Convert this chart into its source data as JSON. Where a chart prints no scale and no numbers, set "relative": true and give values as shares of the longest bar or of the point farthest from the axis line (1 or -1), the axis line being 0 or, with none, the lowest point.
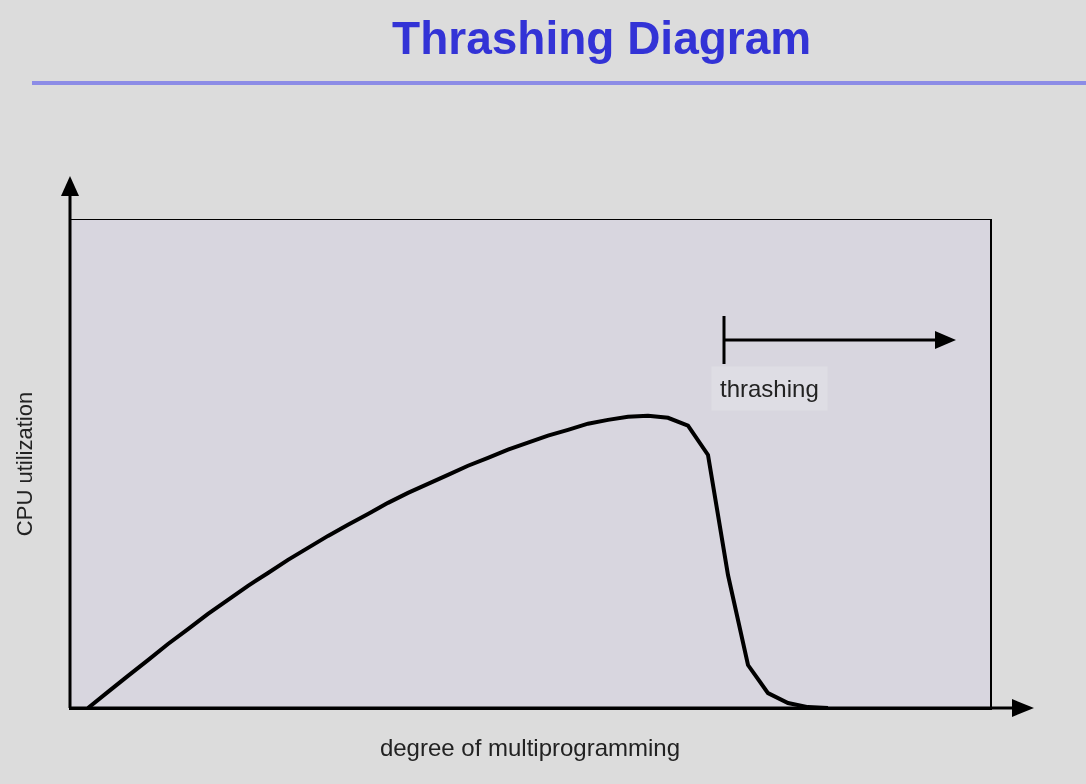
{
  "chart_data": {
    "type": "line",
    "title": "Thrashing Diagram",
    "xlabel": "degree of multiprogramming",
    "ylabel": "CPU utilization",
    "annotations": [
      "thrashing"
    ],
    "relative": true,
    "grid": false,
    "marker": "none",
    "line_style": "solid",
    "categories": [
      null,
      null,
      null,
      null,
      null,
      null,
      null,
      null,
      null,
      null,
      null,
      null,
      null,
      null,
      null,
      null,
      null,
      null,
      null,
      null,
      null,
      null,
      null,
      null,
      null,
      null,
      null,
      null,
      null,
      null,
      null,
      null,
      null,
      null,
      null,
      null,
      null,
      null
    ],
    "series": [
      {
        "color": "#000000",
        "values": [
          0,
          0.055,
          0.11,
          0.164,
          0.219,
          0.27,
          0.322,
          0.37,
          0.418,
          0.462,
          0.507,
          0.548,
          0.589,
          0.627,
          0.664,
          0.702,
          0.736,
          0.767,
          0.798,
          0.829,
          0.856,
          0.884,
          0.908,
          0.932,
          0.952,
          0.973,
          0.986,
          0.997,
          1.0,
          0.993,
          0.966,
          0.866,
          0.455,
          0.147,
          0.051,
          0.017,
          0.003,
          0
        ]
      }
    ]
  }
}
